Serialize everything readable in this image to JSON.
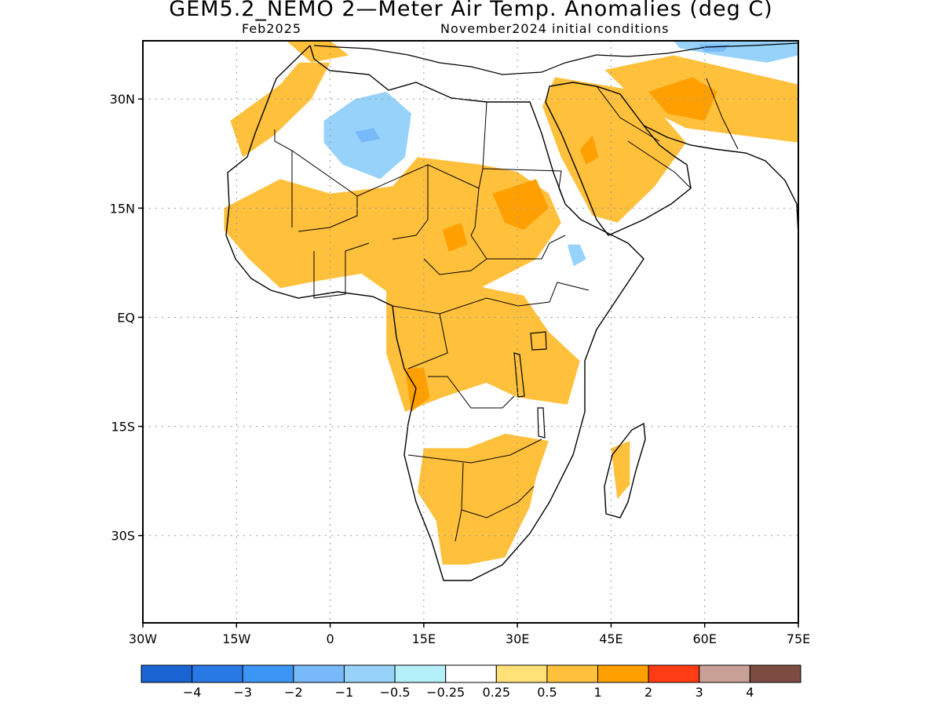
{
  "title": "GEM5.2_NEMO 2—Meter Air Temp. Anomalies (deg C)",
  "subtitle_left": "Feb2025",
  "subtitle_right": "November2024 initial conditions",
  "map": {
    "lon_range": [
      -30,
      75
    ],
    "lat_range": [
      -42,
      38
    ],
    "lat_ticks": [
      {
        "value": 30,
        "label": "30N"
      },
      {
        "value": 15,
        "label": "15N"
      },
      {
        "value": 0,
        "label": "EQ"
      },
      {
        "value": -15,
        "label": "15S"
      },
      {
        "value": -30,
        "label": "30S"
      }
    ],
    "lon_ticks": [
      {
        "value": -30,
        "label": "30W"
      },
      {
        "value": -15,
        "label": "15W"
      },
      {
        "value": 0,
        "label": "0"
      },
      {
        "value": 15,
        "label": "15E"
      },
      {
        "value": 30,
        "label": "30E"
      },
      {
        "value": 45,
        "label": "45E"
      },
      {
        "value": 60,
        "label": "60E"
      },
      {
        "value": 75,
        "label": "75E"
      }
    ],
    "grid": "dotted",
    "anomaly_regions": [
      {
        "name": "Sahara cool anomaly",
        "level": "-0.5",
        "points": [
          [
            -1,
            27
          ],
          [
            4,
            30
          ],
          [
            9,
            31
          ],
          [
            13,
            28
          ],
          [
            12,
            22
          ],
          [
            8,
            19
          ],
          [
            2,
            21
          ],
          [
            -1,
            24
          ]
        ]
      },
      {
        "name": "Sahara cool core",
        "level": "-1",
        "points": [
          [
            4,
            25.5
          ],
          [
            7,
            26
          ],
          [
            8,
            24.5
          ],
          [
            5,
            24
          ]
        ]
      },
      {
        "name": "Central Asia cool anomaly",
        "level": "-0.5",
        "points": [
          [
            55,
            38
          ],
          [
            75,
            38
          ],
          [
            75,
            36
          ],
          [
            70,
            35
          ],
          [
            62,
            36
          ],
          [
            56,
            37
          ]
        ]
      },
      {
        "name": "Central Asia cool core",
        "level": "-1",
        "points": [
          [
            59,
            37.5
          ],
          [
            64,
            37.5
          ],
          [
            63,
            36.5
          ],
          [
            60,
            36.5
          ]
        ]
      },
      {
        "name": "Ethiopia cool anomaly",
        "level": "-0.5",
        "points": [
          [
            38,
            10
          ],
          [
            40,
            10
          ],
          [
            41,
            8
          ],
          [
            39,
            7
          ]
        ]
      },
      {
        "name": "Arabia warm",
        "level": "0.5",
        "points": [
          [
            36,
            33
          ],
          [
            50,
            31
          ],
          [
            57,
            24
          ],
          [
            52,
            18
          ],
          [
            46,
            13
          ],
          [
            42,
            14
          ],
          [
            37,
            22
          ],
          [
            34,
            29
          ]
        ]
      },
      {
        "name": "Iran warm",
        "level": "0.5",
        "points": [
          [
            44,
            34
          ],
          [
            55,
            36
          ],
          [
            65,
            34
          ],
          [
            75,
            32
          ],
          [
            75,
            24
          ],
          [
            66,
            25
          ],
          [
            57,
            26
          ],
          [
            50,
            29
          ]
        ]
      },
      {
        "name": "Iran warm core",
        "level": "1",
        "points": [
          [
            51,
            31
          ],
          [
            58,
            33
          ],
          [
            62,
            31
          ],
          [
            60,
            27
          ],
          [
            54,
            28
          ]
        ]
      },
      {
        "name": "Arabia warm core",
        "level": "1",
        "points": [
          [
            40,
            23
          ],
          [
            42,
            25
          ],
          [
            43,
            22
          ],
          [
            41,
            21
          ]
        ]
      },
      {
        "name": "Sahel warm",
        "level": "0.5",
        "points": [
          [
            -17,
            15
          ],
          [
            -8,
            19
          ],
          [
            0,
            17
          ],
          [
            10,
            18
          ],
          [
            14,
            22
          ],
          [
            24,
            21
          ],
          [
            30,
            20
          ],
          [
            35,
            17
          ],
          [
            37,
            13
          ],
          [
            33,
            8
          ],
          [
            24,
            4
          ],
          [
            16,
            2
          ],
          [
            10,
            3
          ],
          [
            5,
            6
          ],
          [
            -2,
            5
          ],
          [
            -8,
            4
          ],
          [
            -13,
            8
          ],
          [
            -17,
            12
          ]
        ]
      },
      {
        "name": "Sudan warm core",
        "level": "1",
        "points": [
          [
            26,
            17
          ],
          [
            33,
            19
          ],
          [
            35,
            15
          ],
          [
            31,
            12
          ],
          [
            28,
            13
          ]
        ]
      },
      {
        "name": "Chad warm core",
        "level": "1",
        "points": [
          [
            18,
            12
          ],
          [
            21,
            13
          ],
          [
            22,
            10
          ],
          [
            19,
            9
          ]
        ]
      },
      {
        "name": "NW Africa warm",
        "level": "0.5",
        "points": [
          [
            -16,
            27
          ],
          [
            -8,
            32
          ],
          [
            -5,
            35
          ],
          [
            0,
            35
          ],
          [
            -3,
            30
          ],
          [
            -9,
            25
          ],
          [
            -14,
            22
          ]
        ]
      },
      {
        "name": "Central Africa warm",
        "level": "0.5",
        "points": [
          [
            9,
            4
          ],
          [
            17,
            6
          ],
          [
            25,
            4
          ],
          [
            31,
            3
          ],
          [
            35,
            -2
          ],
          [
            40,
            -6
          ],
          [
            38,
            -12
          ],
          [
            30,
            -11
          ],
          [
            25,
            -9
          ],
          [
            18,
            -11
          ],
          [
            12,
            -13
          ],
          [
            9,
            -5
          ]
        ]
      },
      {
        "name": "Angola warm core",
        "level": "1",
        "points": [
          [
            12,
            -7
          ],
          [
            15,
            -7
          ],
          [
            16,
            -11
          ],
          [
            13,
            -13
          ]
        ]
      },
      {
        "name": "Southern Africa warm",
        "level": "0.5",
        "points": [
          [
            15,
            -18
          ],
          [
            22,
            -18
          ],
          [
            28,
            -16
          ],
          [
            35,
            -17
          ],
          [
            33,
            -22
          ],
          [
            32,
            -26
          ],
          [
            28,
            -33
          ],
          [
            22,
            -34
          ],
          [
            18,
            -34
          ],
          [
            17,
            -28
          ],
          [
            14,
            -24
          ]
        ]
      },
      {
        "name": "Madagascar warm",
        "level": "0.5",
        "points": [
          [
            45,
            -18
          ],
          [
            48,
            -17
          ],
          [
            48,
            -23
          ],
          [
            46,
            -25
          ]
        ]
      },
      {
        "name": "Mediterranean warm",
        "level": "0.5",
        "points": [
          [
            -7,
            38
          ],
          [
            0,
            38
          ],
          [
            3,
            36
          ],
          [
            -3,
            35
          ]
        ]
      }
    ]
  },
  "colorbar": {
    "levels": [
      "-4",
      "-3",
      "-2",
      "-1",
      "-0.5",
      "-0.25",
      "0.25",
      "0.5",
      "1",
      "2",
      "3",
      "4"
    ],
    "colors": [
      "#1964d2",
      "#2878e6",
      "#3c96f5",
      "#78b9fa",
      "#96d2fa",
      "#b4f0fa",
      "#ffffff",
      "#ffe178",
      "#ffc03c",
      "#ffa000",
      "#ff3c14",
      "#c8a096",
      "#7d4c41"
    ]
  }
}
